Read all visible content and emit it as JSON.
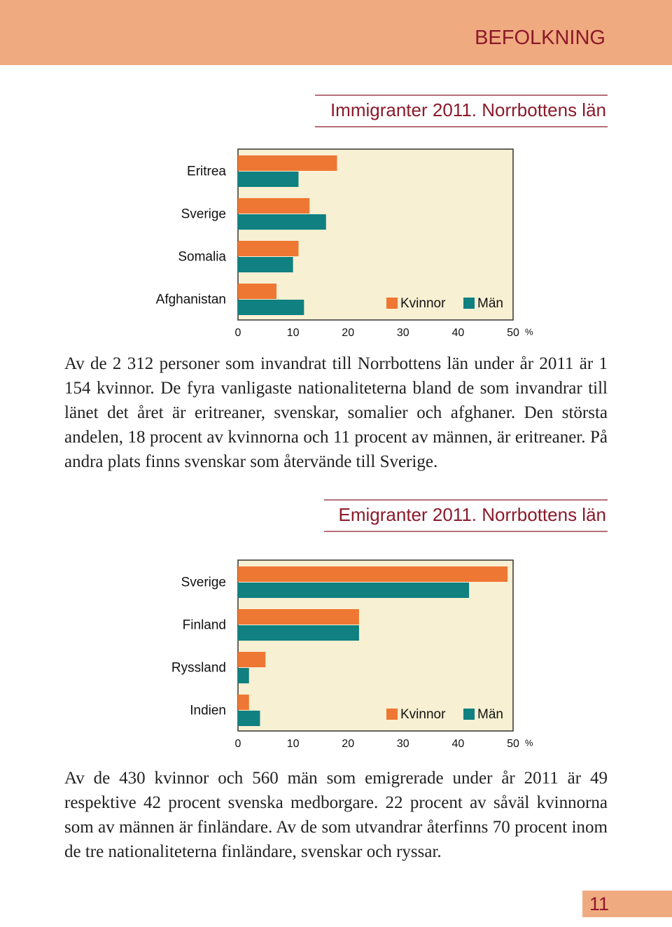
{
  "header": "BEFOLKNING",
  "chart_data": [
    {
      "type": "barh",
      "title": "Immigranter 2011. Norrbottens län",
      "categories": [
        "Eritrea",
        "Sverige",
        "Somalia",
        "Afghanistan"
      ],
      "series": [
        {
          "name": "Kvinnor",
          "color": "#ee7733",
          "values": [
            18,
            13,
            11,
            7
          ]
        },
        {
          "name": "Män",
          "color": "#108080",
          "values": [
            11,
            16,
            10,
            12
          ]
        }
      ],
      "xlim": [
        0,
        50
      ],
      "xticks": [
        0,
        10,
        20,
        30,
        40,
        50
      ],
      "xlabel": "%",
      "legend": "lower right"
    },
    {
      "type": "barh",
      "title": "Emigranter 2011. Norrbottens län",
      "categories": [
        "Sverige",
        "Finland",
        "Ryssland",
        "Indien"
      ],
      "series": [
        {
          "name": "Kvinnor",
          "color": "#ee7733",
          "values": [
            49,
            22,
            5,
            2
          ]
        },
        {
          "name": "Män",
          "color": "#108080",
          "values": [
            42,
            22,
            2,
            4
          ]
        }
      ],
      "xlim": [
        0,
        50
      ],
      "xticks": [
        0,
        10,
        20,
        30,
        40,
        50
      ],
      "xlabel": "%",
      "legend": "lower right"
    }
  ],
  "paragraphs": [
    "Av de 2 312 personer som invandrat till Norrbottens län under år 2011 är 1 154 kvinnor. De fyra vanligaste nationaliteterna bland de som invandrar till länet det året är eritreaner, svenskar, somalier och afghaner. Den största andelen, 18 procent av kvinnorna och 11 procent av männen, är eritreaner. På andra plats finns svenskar som återvände till Sverige.",
    "Av de 430 kvinnor och 560 män som emigrerade under år 2011 är 49 respektive 42 procent svenska medborgare. 22 procent av såväl kvinnorna som av männen är finländare. Av de som utvandrar återfinns 70 procent inom de tre nationaliteterna finländare, svenskar och ryssar."
  ],
  "page_number": "11"
}
